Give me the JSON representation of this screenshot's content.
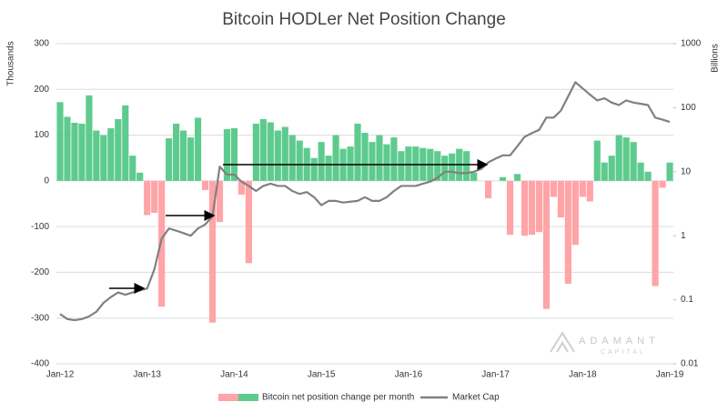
{
  "chart_data": {
    "type": "bar_line",
    "title": "Bitcoin HODLer Net Position Change",
    "y_label": "Thousands",
    "y2_label": "Billions",
    "watermark": [
      "ADAMANT",
      "CAPITAL"
    ],
    "categories": [
      "Jan-12",
      null,
      null,
      null,
      null,
      null,
      null,
      null,
      null,
      null,
      null,
      null,
      "Jan-13",
      null,
      null,
      null,
      null,
      null,
      null,
      null,
      null,
      null,
      null,
      null,
      "Jan-14",
      null,
      null,
      null,
      null,
      null,
      null,
      null,
      null,
      null,
      null,
      null,
      "Jan-15",
      null,
      null,
      null,
      null,
      null,
      null,
      null,
      null,
      null,
      null,
      null,
      "Jan-16",
      null,
      null,
      null,
      null,
      null,
      null,
      null,
      null,
      null,
      null,
      null,
      "Jan-17",
      null,
      null,
      null,
      null,
      null,
      null,
      null,
      null,
      null,
      null,
      null,
      "Jan-18",
      null,
      null,
      null,
      null,
      null,
      null,
      null,
      null,
      null,
      null,
      null,
      "Jan-19"
    ],
    "series": [
      {
        "name": "Bitcoin net position change per month",
        "color": "#5ecb8e",
        "negative_color": "#ffa4a7",
        "values": [
          172,
          140,
          127,
          125,
          187,
          110,
          100,
          115,
          135,
          165,
          55,
          18,
          -75,
          -70,
          -275,
          93,
          125,
          110,
          95,
          138,
          -20,
          -310,
          -90,
          113,
          115,
          -30,
          -180,
          125,
          135,
          128,
          110,
          118,
          100,
          88,
          72,
          50,
          85,
          55,
          100,
          70,
          75,
          125,
          105,
          85,
          100,
          80,
          95,
          65,
          75,
          75,
          72,
          70,
          65,
          55,
          60,
          70,
          65,
          18,
          0,
          -38,
          0,
          8,
          -118,
          15,
          -120,
          -118,
          -112,
          -280,
          -35,
          -80,
          -225,
          -140,
          -35,
          -45,
          88,
          40,
          55,
          100,
          95,
          85,
          40,
          20,
          -230,
          -15,
          40
        ]
      },
      {
        "name": "Market Cap",
        "color": "#808080",
        "axis": "y2",
        "values": [
          0.06,
          0.05,
          0.048,
          0.05,
          0.055,
          0.065,
          0.09,
          0.11,
          0.13,
          0.12,
          0.13,
          0.14,
          0.15,
          0.3,
          0.9,
          1.3,
          1.2,
          1.1,
          1.0,
          1.3,
          1.5,
          2,
          12,
          9,
          9,
          7,
          6,
          5,
          6,
          6.5,
          6,
          6,
          5,
          4.5,
          4.8,
          4,
          3,
          3.5,
          3.5,
          3.3,
          3.4,
          3.5,
          4,
          3.5,
          3.5,
          4,
          5,
          6,
          6,
          6,
          6.5,
          7,
          8,
          10,
          10,
          9.5,
          9.5,
          10,
          11,
          14,
          16,
          18,
          18,
          25,
          35,
          40,
          45,
          70,
          70,
          90,
          150,
          250,
          200,
          160,
          130,
          140,
          120,
          110,
          130,
          120,
          115,
          110,
          70,
          65,
          60
        ]
      }
    ],
    "ylim": [
      -400,
      300
    ],
    "yticks": [
      -400,
      -300,
      -200,
      -100,
      0,
      100,
      200,
      300
    ],
    "y2lim": [
      0.01,
      1000
    ],
    "y2ticks": [
      0.01,
      0.1,
      1,
      10,
      100,
      1000
    ],
    "y2_log": true,
    "grid": true,
    "legend": "bottom"
  }
}
